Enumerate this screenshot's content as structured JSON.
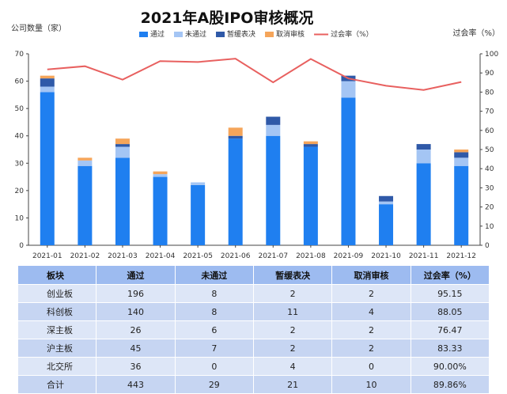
{
  "colors": {
    "passed": "#1f7ff0",
    "not_passed": "#a4c5f4",
    "suspended": "#2f59a8",
    "cancelled": "#f5a55a",
    "pass_rate": "#e8605f",
    "header_bg": "#9dbbf0"
  },
  "chart_data": {
    "type": "bar",
    "title": "2021年A股IPO审核概况",
    "ylabel": "公司数量（家）",
    "y2label": "过会率（%）",
    "ylim": [
      0,
      70
    ],
    "y2lim": [
      0,
      100
    ],
    "yticks": [
      0,
      10,
      20,
      30,
      40,
      50,
      60,
      70
    ],
    "y2ticks": [
      0,
      10,
      20,
      30,
      40,
      50,
      60,
      70,
      80,
      90,
      100
    ],
    "grid": false,
    "legend_position": "top",
    "stacked": true,
    "categories": [
      "2021-01",
      "2021-02",
      "2021-03",
      "2021-04",
      "2021-05",
      "2021-06",
      "2021-07",
      "2021-08",
      "2021-09",
      "2021-10",
      "2021-11",
      "2021-12"
    ],
    "series": [
      {
        "name": "通过",
        "type": "bar",
        "color_key": "passed",
        "values": [
          56,
          29,
          32,
          25,
          22,
          39,
          40,
          36,
          54,
          15,
          30,
          29
        ]
      },
      {
        "name": "未通过",
        "type": "bar",
        "color_key": "not_passed",
        "values": [
          2,
          2,
          4,
          1,
          1,
          0,
          4,
          0,
          6,
          1,
          5,
          3
        ]
      },
      {
        "name": "暂缓表决",
        "type": "bar",
        "color_key": "suspended",
        "values": [
          3,
          0,
          1,
          0,
          0,
          1,
          3,
          1,
          2,
          2,
          2,
          2
        ]
      },
      {
        "name": "取消审核",
        "type": "bar",
        "color_key": "cancelled",
        "values": [
          1,
          1,
          2,
          1,
          0,
          3,
          0,
          1,
          0,
          0,
          0,
          1
        ]
      },
      {
        "name": "过会率（%）",
        "type": "line",
        "axis": "right",
        "color_key": "pass_rate",
        "values": [
          91.8,
          93.5,
          86.5,
          96.2,
          95.7,
          97.5,
          85.1,
          97.3,
          87.1,
          83.3,
          81.1,
          85.3
        ]
      }
    ]
  },
  "table": {
    "headers": [
      "板块",
      "通过",
      "未通过",
      "暂缓表决",
      "取消审核",
      "过会率（%）"
    ],
    "rows": [
      [
        "创业板",
        "196",
        "8",
        "2",
        "2",
        "95.15"
      ],
      [
        "科创板",
        "140",
        "8",
        "11",
        "4",
        "88.05"
      ],
      [
        "深主板",
        "26",
        "6",
        "2",
        "2",
        "76.47"
      ],
      [
        "沪主板",
        "45",
        "7",
        "2",
        "2",
        "83.33"
      ],
      [
        "北交所",
        "36",
        "0",
        "4",
        "0",
        "90.00%"
      ],
      [
        "合计",
        "443",
        "29",
        "21",
        "10",
        "89.86%"
      ]
    ]
  }
}
